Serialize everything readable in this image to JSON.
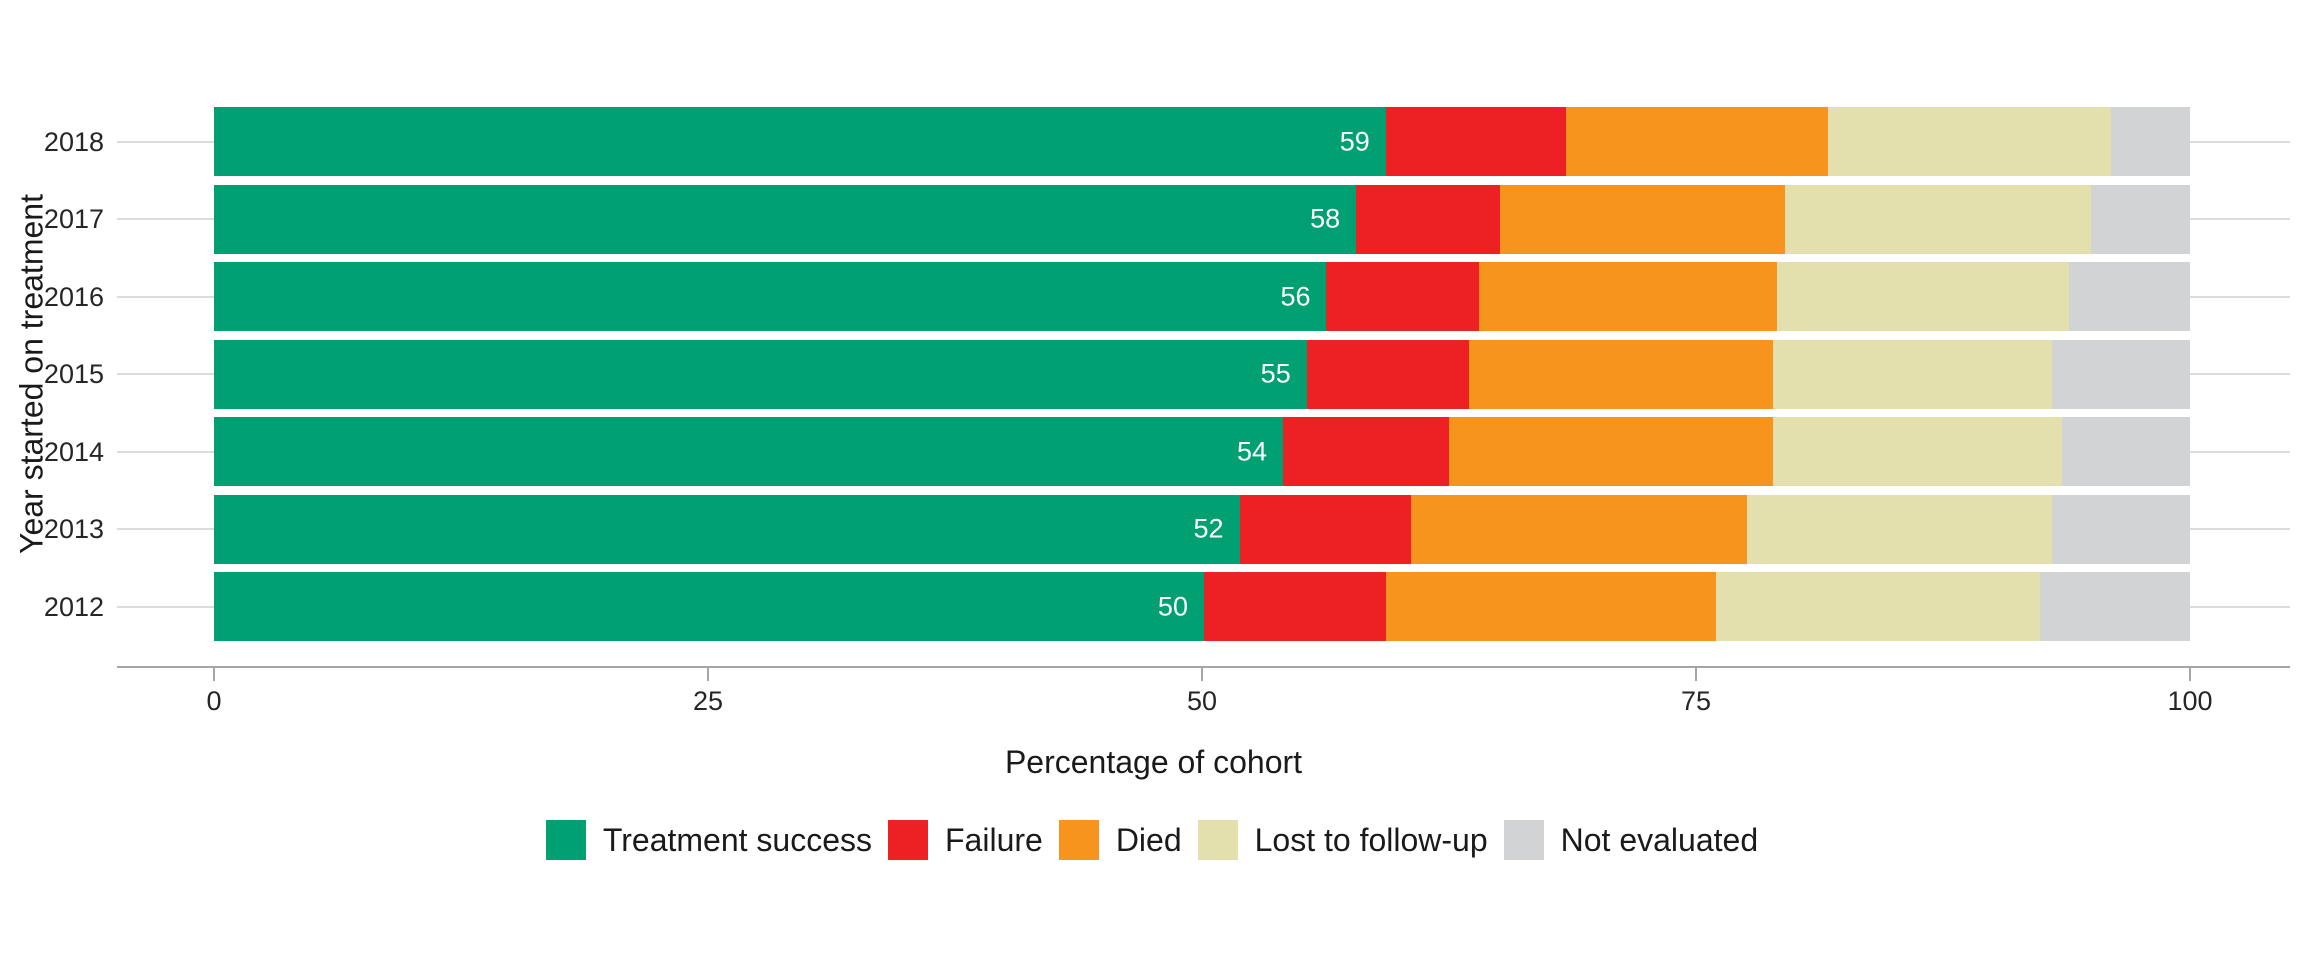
{
  "chart_data": {
    "type": "bar",
    "orientation": "horizontal",
    "stacked": true,
    "title": "",
    "xlabel": "Percentage of cohort",
    "ylabel": "Year started on treatment",
    "xlim": [
      0,
      100
    ],
    "x_tick_labels": [
      "0",
      "25",
      "50",
      "75",
      "100"
    ],
    "x_ticks": [
      0,
      25,
      50,
      75,
      100
    ],
    "categories": [
      "2018",
      "2017",
      "2016",
      "2015",
      "2014",
      "2013",
      "2012"
    ],
    "series": [
      {
        "name": "Treatment success",
        "color": "#00a073",
        "values": [
          59.3,
          57.8,
          56.3,
          55.3,
          54.1,
          51.9,
          50.1
        ],
        "data_labels": [
          "59",
          "58",
          "56",
          "55",
          "54",
          "52",
          "50"
        ]
      },
      {
        "name": "Failure",
        "color": "#ed2024",
        "values": [
          9.1,
          7.3,
          7.7,
          8.2,
          8.4,
          8.7,
          9.2
        ]
      },
      {
        "name": "Died",
        "color": "#f7941e",
        "values": [
          13.3,
          14.4,
          15.1,
          15.4,
          16.4,
          17.0,
          16.7
        ]
      },
      {
        "name": "Lost to follow-up",
        "color": "#e4e0ae",
        "values": [
          14.3,
          15.5,
          14.8,
          14.1,
          14.6,
          15.4,
          16.4
        ]
      },
      {
        "name": "Not evaluated",
        "color": "#d2d3d5",
        "values": [
          4.0,
          5.0,
          6.1,
          7.0,
          6.5,
          7.0,
          7.6
        ]
      }
    ],
    "legend_position": "bottom",
    "grid": "horizontal",
    "colors": {
      "gridline": "#dcdcdc",
      "axis_line": "#a6a6a6",
      "tick_text": "#262626",
      "title_text": "#1a1a1a",
      "bar_label_text": "#ffffff",
      "background": "#ffffff"
    }
  }
}
